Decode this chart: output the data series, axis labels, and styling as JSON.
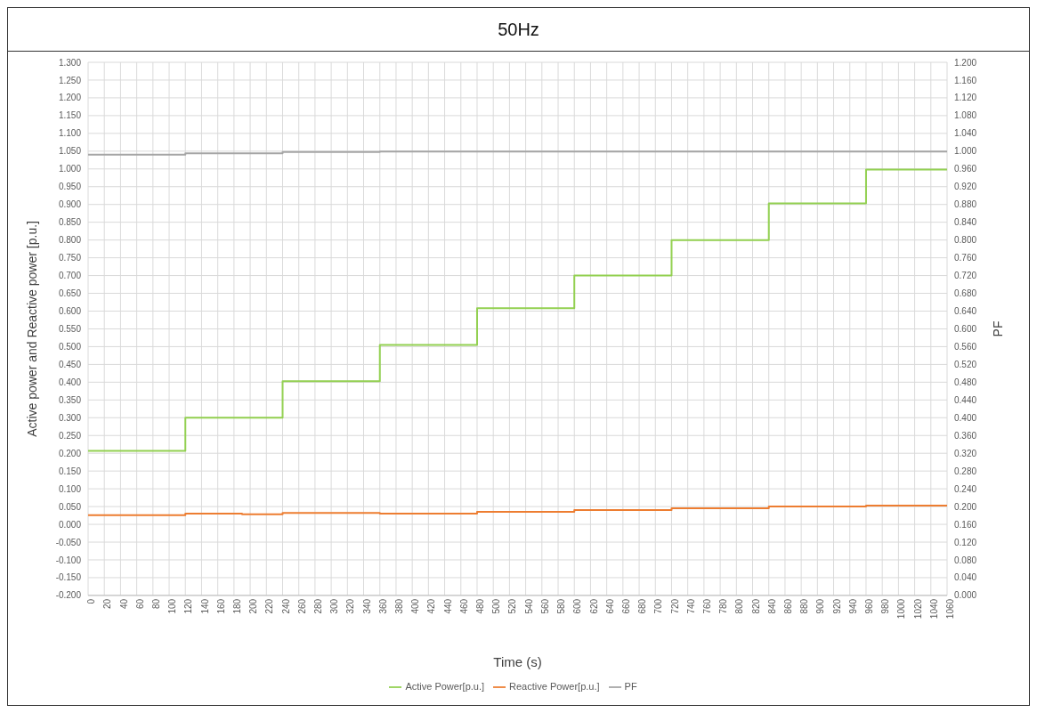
{
  "chart_data": {
    "type": "step",
    "title": "50Hz",
    "xlabel": "Time (s)",
    "ylabel": "Active power and Reactive power [p.u.]",
    "y2label": "PF",
    "series": [
      {
        "name": "Active Power[p.u.]",
        "color": "#92d050",
        "x": [
          0,
          120,
          240,
          360,
          480,
          600,
          720,
          840,
          960,
          1060
        ],
        "values": [
          0.207,
          0.3,
          0.403,
          0.505,
          0.608,
          0.7,
          0.8,
          0.903,
          0.998,
          0.998
        ]
      },
      {
        "name": "Reactive Power[p.u.]",
        "color": "#ed7d31",
        "x": [
          0,
          120,
          190,
          240,
          360,
          480,
          600,
          720,
          840,
          960,
          1060
        ],
        "values": [
          0.026,
          0.03,
          0.028,
          0.032,
          0.03,
          0.035,
          0.04,
          0.045,
          0.05,
          0.053,
          0.053
        ]
      },
      {
        "name": "PF",
        "color": "#a5a5a5",
        "axis": "y2",
        "x": [
          0,
          120,
          240,
          360,
          1060
        ],
        "values": [
          0.992,
          0.995,
          0.998,
          0.999,
          0.999
        ]
      }
    ],
    "xlim": [
      0,
      1060
    ],
    "xticks": [
      0,
      20,
      40,
      60,
      80,
      100,
      120,
      140,
      160,
      180,
      200,
      220,
      240,
      260,
      280,
      300,
      320,
      340,
      360,
      380,
      400,
      420,
      440,
      460,
      480,
      500,
      520,
      540,
      560,
      580,
      600,
      620,
      640,
      660,
      680,
      700,
      720,
      740,
      760,
      780,
      800,
      820,
      840,
      860,
      880,
      900,
      920,
      940,
      960,
      980,
      1000,
      1020,
      1040,
      1060
    ],
    "ylim": [
      -0.2,
      1.3
    ],
    "yticks": [
      {
        "value": -0.2,
        "label": "-0.200"
      },
      {
        "value": -0.15,
        "label": "-0.150"
      },
      {
        "value": -0.1,
        "label": "-0.100"
      },
      {
        "value": -0.05,
        "label": "-0.050"
      },
      {
        "value": 0,
        "label": "0.000"
      },
      {
        "value": 0.05,
        "label": "0.050"
      },
      {
        "value": 0.1,
        "label": "0.100"
      },
      {
        "value": 0.15,
        "label": "0.150"
      },
      {
        "value": 0.2,
        "label": "0.200"
      },
      {
        "value": 0.25,
        "label": "0.250"
      },
      {
        "value": 0.3,
        "label": "0.300"
      },
      {
        "value": 0.35,
        "label": "0.350"
      },
      {
        "value": 0.4,
        "label": "0.400"
      },
      {
        "value": 0.45,
        "label": "0.450"
      },
      {
        "value": 0.5,
        "label": "0.500"
      },
      {
        "value": 0.55,
        "label": "0.550"
      },
      {
        "value": 0.6,
        "label": "0.600"
      },
      {
        "value": 0.65,
        "label": "0.650"
      },
      {
        "value": 0.7,
        "label": "0.700"
      },
      {
        "value": 0.75,
        "label": "0.750"
      },
      {
        "value": 0.8,
        "label": "0.800"
      },
      {
        "value": 0.85,
        "label": "0.850"
      },
      {
        "value": 0.9,
        "label": "0.900"
      },
      {
        "value": 0.95,
        "label": "0.950"
      },
      {
        "value": 1,
        "label": "1.000"
      },
      {
        "value": 1.05,
        "label": "1.050"
      },
      {
        "value": 1.1,
        "label": "1.100"
      },
      {
        "value": 1.15,
        "label": "1.150"
      },
      {
        "value": 1.2,
        "label": "1.200"
      },
      {
        "value": 1.25,
        "label": "1.250"
      },
      {
        "value": 1.3,
        "label": "1.300"
      }
    ],
    "y2lim": [
      0,
      1.2
    ],
    "y2ticks": [
      {
        "value": 0,
        "label": "0.000"
      },
      {
        "value": 0.04,
        "label": "0.040"
      },
      {
        "value": 0.08,
        "label": "0.080"
      },
      {
        "value": 0.12,
        "label": "0.120"
      },
      {
        "value": 0.16,
        "label": "0.160"
      },
      {
        "value": 0.2,
        "label": "0.200"
      },
      {
        "value": 0.24,
        "label": "0.240"
      },
      {
        "value": 0.28,
        "label": "0.280"
      },
      {
        "value": 0.32,
        "label": "0.320"
      },
      {
        "value": 0.36,
        "label": "0.360"
      },
      {
        "value": 0.4,
        "label": "0.400"
      },
      {
        "value": 0.44,
        "label": "0.440"
      },
      {
        "value": 0.48,
        "label": "0.480"
      },
      {
        "value": 0.52,
        "label": "0.520"
      },
      {
        "value": 0.56,
        "label": "0.560"
      },
      {
        "value": 0.6,
        "label": "0.600"
      },
      {
        "value": 0.64,
        "label": "0.640"
      },
      {
        "value": 0.68,
        "label": "0.680"
      },
      {
        "value": 0.72,
        "label": "0.720"
      },
      {
        "value": 0.76,
        "label": "0.760"
      },
      {
        "value": 0.8,
        "label": "0.800"
      },
      {
        "value": 0.84,
        "label": "0.840"
      },
      {
        "value": 0.88,
        "label": "0.880"
      },
      {
        "value": 0.92,
        "label": "0.920"
      },
      {
        "value": 0.96,
        "label": "0.960"
      },
      {
        "value": 1,
        "label": "1.000"
      },
      {
        "value": 1.04,
        "label": "1.040"
      },
      {
        "value": 1.08,
        "label": "1.080"
      },
      {
        "value": 1.12,
        "label": "1.120"
      },
      {
        "value": 1.16,
        "label": "1.160"
      },
      {
        "value": 1.2,
        "label": "1.200"
      }
    ],
    "grid": true,
    "legend": "bottom",
    "marker": "none",
    "line_style": "solid"
  }
}
